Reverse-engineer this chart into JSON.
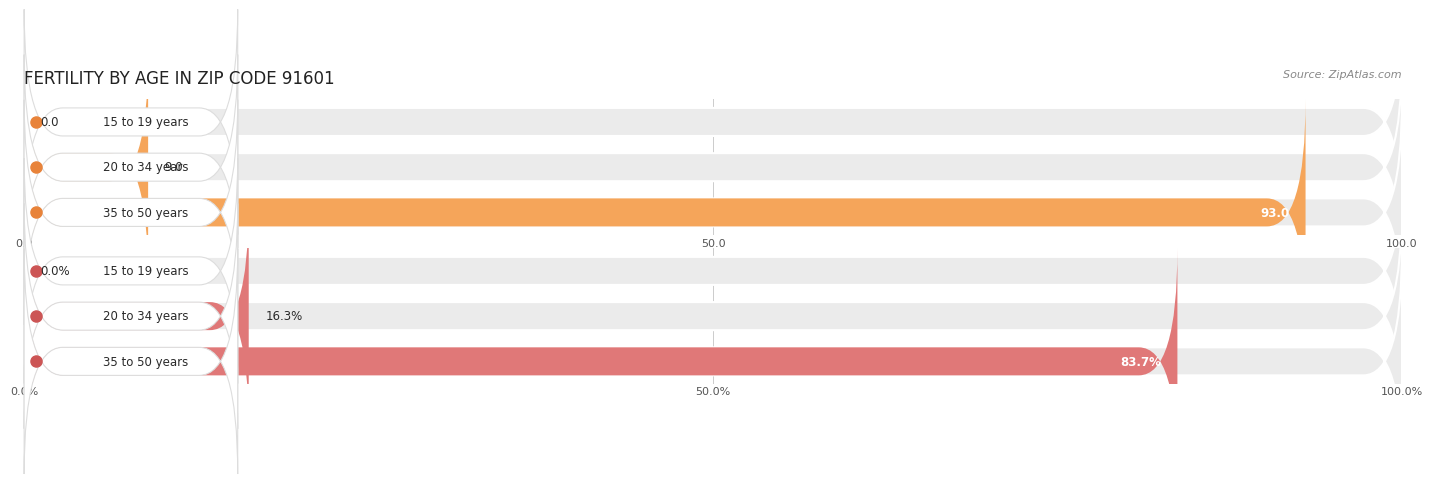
{
  "title": "FERTILITY BY AGE IN ZIP CODE 91601",
  "source": "Source: ZipAtlas.com",
  "top_chart": {
    "categories": [
      "15 to 19 years",
      "20 to 34 years",
      "35 to 50 years"
    ],
    "values": [
      0.0,
      9.0,
      93.0
    ],
    "max_val": 100.0,
    "tick_labels": [
      "0.0",
      "50.0",
      "100.0"
    ],
    "bar_color": "#F5A55A",
    "bar_color_dark": "#E8833A",
    "bar_bg": "#EBEBEB",
    "value_labels": [
      "0.0",
      "9.0",
      "93.0"
    ],
    "value_inside": [
      false,
      false,
      true
    ]
  },
  "bottom_chart": {
    "categories": [
      "15 to 19 years",
      "20 to 34 years",
      "35 to 50 years"
    ],
    "values": [
      0.0,
      16.3,
      83.7
    ],
    "max_val": 100.0,
    "tick_labels": [
      "0.0%",
      "50.0%",
      "100.0%"
    ],
    "bar_color": "#E07878",
    "bar_color_dark": "#CC5555",
    "bar_bg": "#EBEBEB",
    "value_labels": [
      "0.0%",
      "16.3%",
      "83.7%"
    ],
    "value_inside": [
      false,
      false,
      true
    ]
  },
  "fig_bg": "#FFFFFF",
  "title_fontsize": 12,
  "label_fontsize": 8.5,
  "tick_fontsize": 8,
  "source_fontsize": 8
}
